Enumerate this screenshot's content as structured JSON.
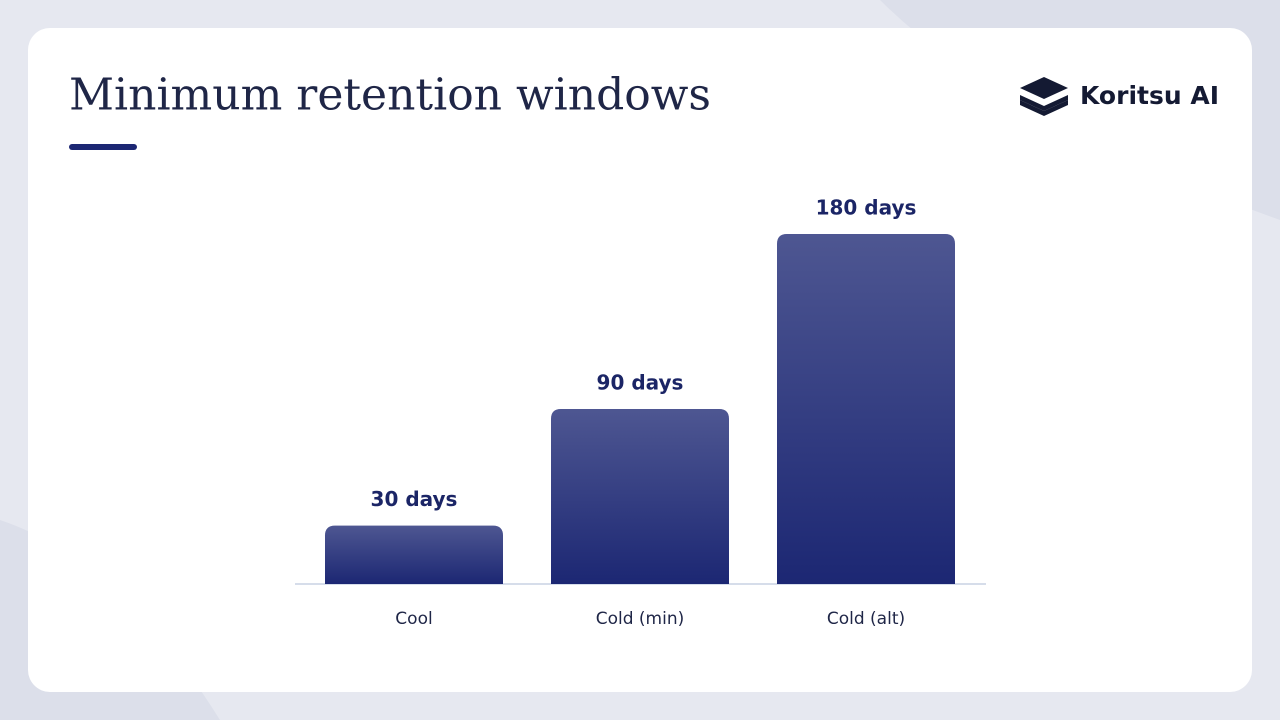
{
  "brand": "Koritsu AI",
  "chart_data": {
    "type": "bar",
    "title": "Minimum retention windows",
    "categories": [
      "Cool",
      "Cold (min)",
      "Cold (alt)"
    ],
    "values": [
      30,
      90,
      180
    ],
    "value_labels": [
      "30 days",
      "90 days",
      "180 days"
    ],
    "color": "#1c2773"
  }
}
